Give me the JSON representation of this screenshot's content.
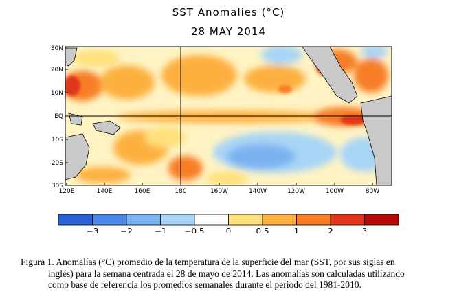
{
  "title": "SST Anomalies (°C)",
  "date": "28 MAY 2014",
  "lat_labels": [
    "30N",
    "20N",
    "10N",
    "EQ",
    "10S",
    "20S",
    "30S"
  ],
  "lon_labels": [
    "120E",
    "140E",
    "160E",
    "180",
    "160W",
    "140W",
    "120W",
    "100W",
    "80W"
  ],
  "colorbar": {
    "colors": [
      "#2b63d6",
      "#4a8ae6",
      "#7ab3f0",
      "#a8d5f6",
      "#ffffff",
      "#ffe07a",
      "#fdb03f",
      "#f77e25",
      "#e0371d",
      "#b80c0c"
    ],
    "tick_labels": [
      "−3",
      "−2",
      "−1",
      "−0.5",
      "0",
      "0.5",
      "1",
      "2",
      "3"
    ]
  },
  "caption": {
    "line1": "Figura 1. Anomalías (°C) promedio de la temperatura de la superficie del mar (SST, por sus siglas en",
    "line2": "inglés) para la semana centrada el 28 de mayo de 2014.   Las anomalías son calculadas utilizando",
    "line3": "como base de referencia los promedios semanales durante el periodo del 1981-2010."
  }
}
